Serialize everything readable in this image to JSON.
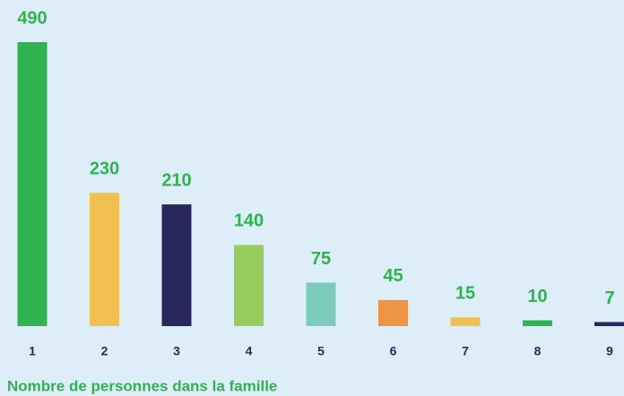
{
  "chart_data": {
    "type": "bar",
    "xlabel": "Nombre de personnes dans la famille",
    "categories": [
      "1",
      "2",
      "3",
      "4",
      "5",
      "6",
      "7",
      "8",
      "9"
    ],
    "values": [
      490,
      230,
      210,
      140,
      75,
      45,
      15,
      10,
      7
    ],
    "colors": [
      "#2fb350",
      "#f0c050",
      "#28285e",
      "#97cc5e",
      "#7dcbbb",
      "#ee9544",
      "#f0c050",
      "#2fb350",
      "#28285e"
    ]
  }
}
